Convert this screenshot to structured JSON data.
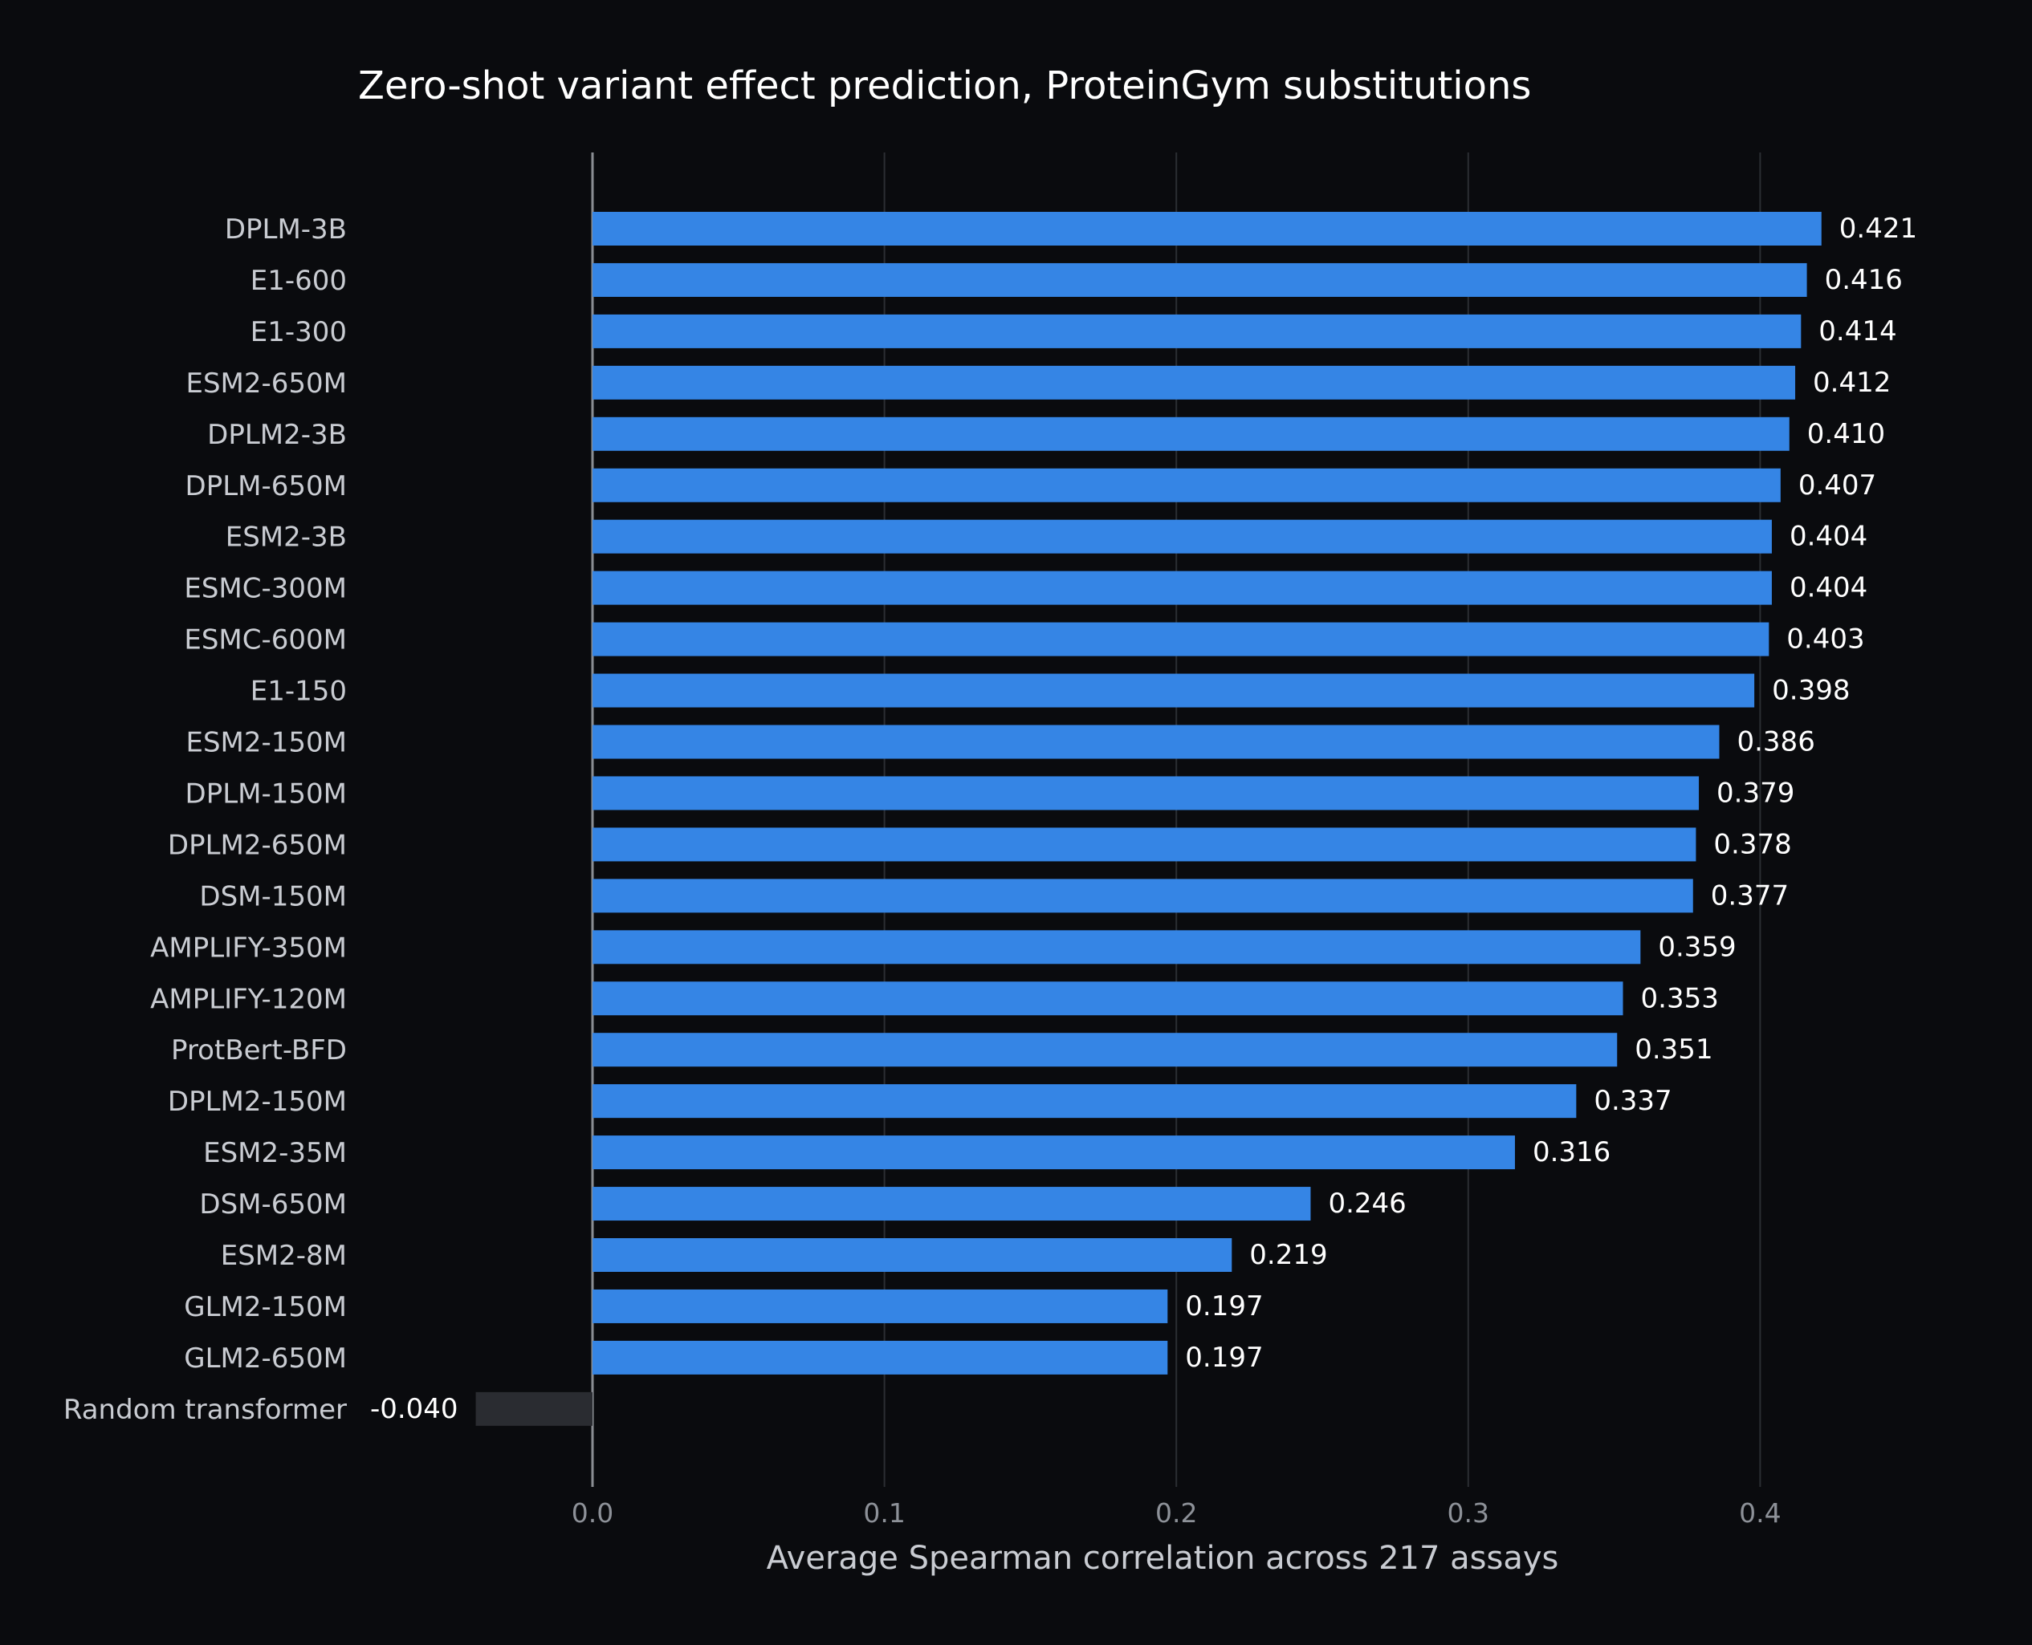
{
  "chart_data": {
    "type": "bar",
    "orientation": "horizontal",
    "title": "Zero-shot variant effect prediction, ProteinGym substitutions",
    "xlabel": "Average Spearman correlation across 217 assays",
    "ylabel": "",
    "xlim": [
      -0.045,
      0.46
    ],
    "xticks": [
      0.0,
      0.1,
      0.2,
      0.3,
      0.4
    ],
    "xtick_labels": [
      "0.0",
      "0.1",
      "0.2",
      "0.3",
      "0.4"
    ],
    "grid": "vertical",
    "categories": [
      "DPLM-3B",
      "E1-600",
      "E1-300",
      "ESM2-650M",
      "DPLM2-3B",
      "DPLM-650M",
      "ESM2-3B",
      "ESMC-300M",
      "ESMC-600M",
      "E1-150",
      "ESM2-150M",
      "DPLM-150M",
      "DPLM2-650M",
      "DSM-150M",
      "AMPLIFY-350M",
      "AMPLIFY-120M",
      "ProtBert-BFD",
      "DPLM2-150M",
      "ESM2-35M",
      "DSM-650M",
      "ESM2-8M",
      "GLM2-150M",
      "GLM2-650M",
      "Random transformer"
    ],
    "values": [
      0.421,
      0.416,
      0.414,
      0.412,
      0.41,
      0.407,
      0.404,
      0.404,
      0.403,
      0.398,
      0.386,
      0.379,
      0.378,
      0.377,
      0.359,
      0.353,
      0.351,
      0.337,
      0.316,
      0.246,
      0.219,
      0.197,
      0.197,
      -0.04
    ],
    "value_labels": [
      "0.421",
      "0.416",
      "0.414",
      "0.412",
      "0.410",
      "0.407",
      "0.404",
      "0.404",
      "0.403",
      "0.398",
      "0.386",
      "0.379",
      "0.378",
      "0.377",
      "0.359",
      "0.353",
      "0.351",
      "0.337",
      "0.316",
      "0.246",
      "0.219",
      "0.197",
      "0.197",
      "-0.040"
    ],
    "colors": {
      "background": "#0a0b0e",
      "bar": "#3585e5",
      "baseline_bar": "#2a2c31",
      "gridline": "#2b2e33",
      "zero_line": "#8a8d93"
    }
  }
}
